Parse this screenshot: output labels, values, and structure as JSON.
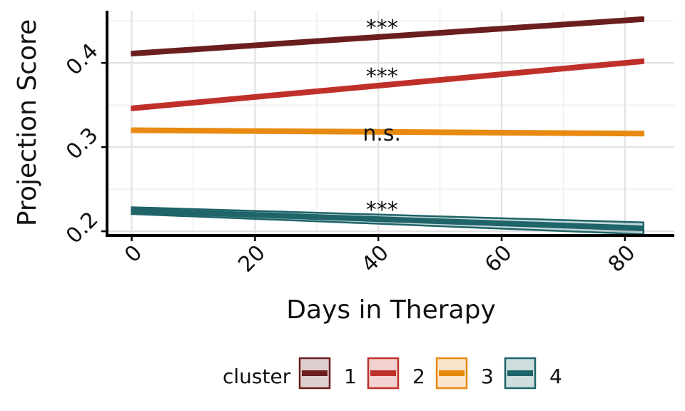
{
  "chart_data": {
    "type": "line",
    "xlabel": "Days in Therapy",
    "ylabel": "Projection Score",
    "xlim": [
      -4,
      88
    ],
    "ylim": [
      0.195,
      0.462
    ],
    "xticks": [
      0,
      20,
      40,
      60,
      80
    ],
    "xtick_labels": [
      "0",
      "20",
      "40",
      "60",
      "80"
    ],
    "yticks": [
      0.2,
      0.3,
      0.4
    ],
    "ytick_labels": [
      "0.2",
      "0.3",
      "0.4"
    ],
    "grid": true,
    "legend": {
      "title": "cluster",
      "position": "bottom"
    },
    "series": [
      {
        "name": "1",
        "color": "#6b1e1e",
        "x": [
          0,
          83
        ],
        "y": [
          0.411,
          0.452
        ],
        "band": [
          0.002,
          0.002
        ],
        "annotation": "***"
      },
      {
        "name": "2",
        "color": "#c0302b",
        "x": [
          0,
          83
        ],
        "y": [
          0.346,
          0.402
        ],
        "band": [
          0.002,
          0.002
        ],
        "annotation": "***"
      },
      {
        "name": "3",
        "color": "#e88a10",
        "x": [
          0,
          83
        ],
        "y": [
          0.32,
          0.316
        ],
        "band": [
          0.002,
          0.002
        ],
        "annotation": "n.s."
      },
      {
        "name": "4",
        "color": "#1e6469",
        "x": [
          0,
          83
        ],
        "y": [
          0.2245,
          0.2035
        ],
        "band": [
          0.004,
          0.007
        ],
        "annotation": "***"
      }
    ]
  }
}
